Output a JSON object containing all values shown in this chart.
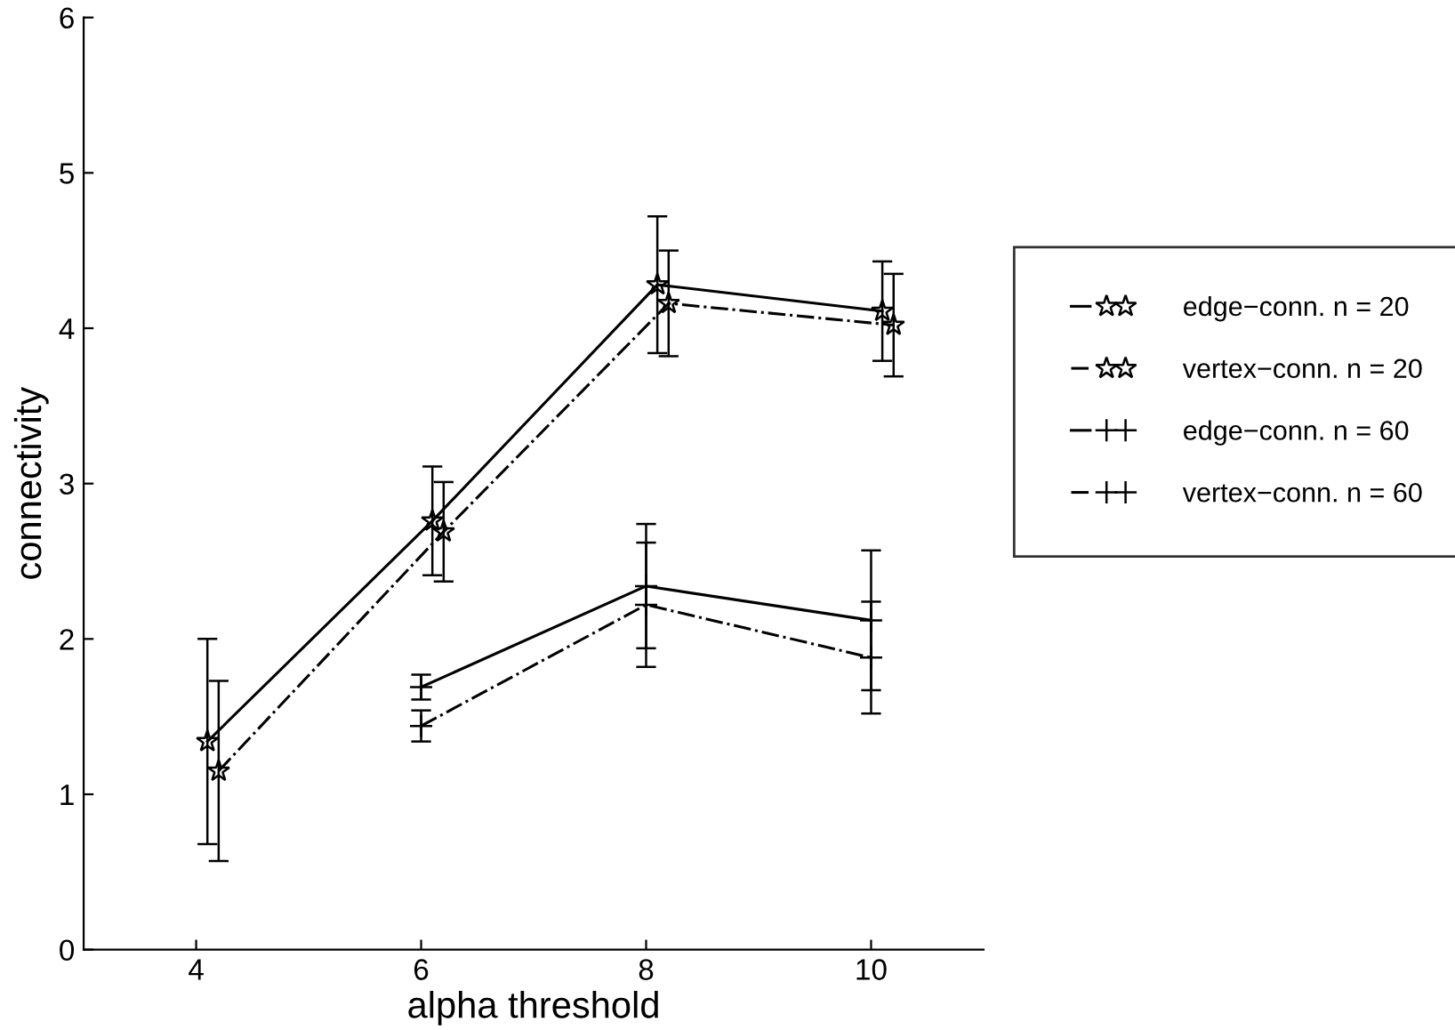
{
  "chart_data": {
    "type": "line",
    "xlabel": "alpha threshold",
    "ylabel": "connectivity",
    "xlim": [
      3,
      11
    ],
    "xticks": [
      4,
      6,
      8,
      10
    ],
    "ylim": [
      0,
      6
    ],
    "yticks": [
      0,
      1,
      2,
      3,
      4,
      5,
      6
    ],
    "grid": false,
    "legend": "right",
    "series": [
      {
        "name": "edge−conn. n = 20",
        "color": "#000000",
        "marker": "star",
        "line_style": "solid",
        "x": [
          4.1,
          6.1,
          8.1,
          10.1
        ],
        "values": [
          1.34,
          2.76,
          4.28,
          4.11
        ],
        "errors": [
          0.66,
          0.35,
          0.44,
          0.32
        ]
      },
      {
        "name": "vertex−conn. n = 20",
        "color": "#000000",
        "marker": "star",
        "line_style": "dashdot",
        "x": [
          4.2,
          6.2,
          8.2,
          10.2
        ],
        "values": [
          1.15,
          2.69,
          4.16,
          4.02
        ],
        "errors": [
          0.58,
          0.32,
          0.34,
          0.33
        ]
      },
      {
        "name": "edge−conn. n = 60",
        "color": "#000000",
        "marker": "cross",
        "line_style": "solid",
        "x": [
          6,
          8,
          10
        ],
        "values": [
          1.69,
          2.34,
          2.12
        ],
        "errors": [
          0.08,
          0.4,
          0.45
        ]
      },
      {
        "name": "vertex−conn. n = 60",
        "color": "#000000",
        "marker": "cross",
        "line_style": "dashdot",
        "x": [
          6,
          8,
          10
        ],
        "values": [
          1.44,
          2.22,
          1.88
        ],
        "errors": [
          0.1,
          0.4,
          0.36
        ]
      }
    ]
  }
}
